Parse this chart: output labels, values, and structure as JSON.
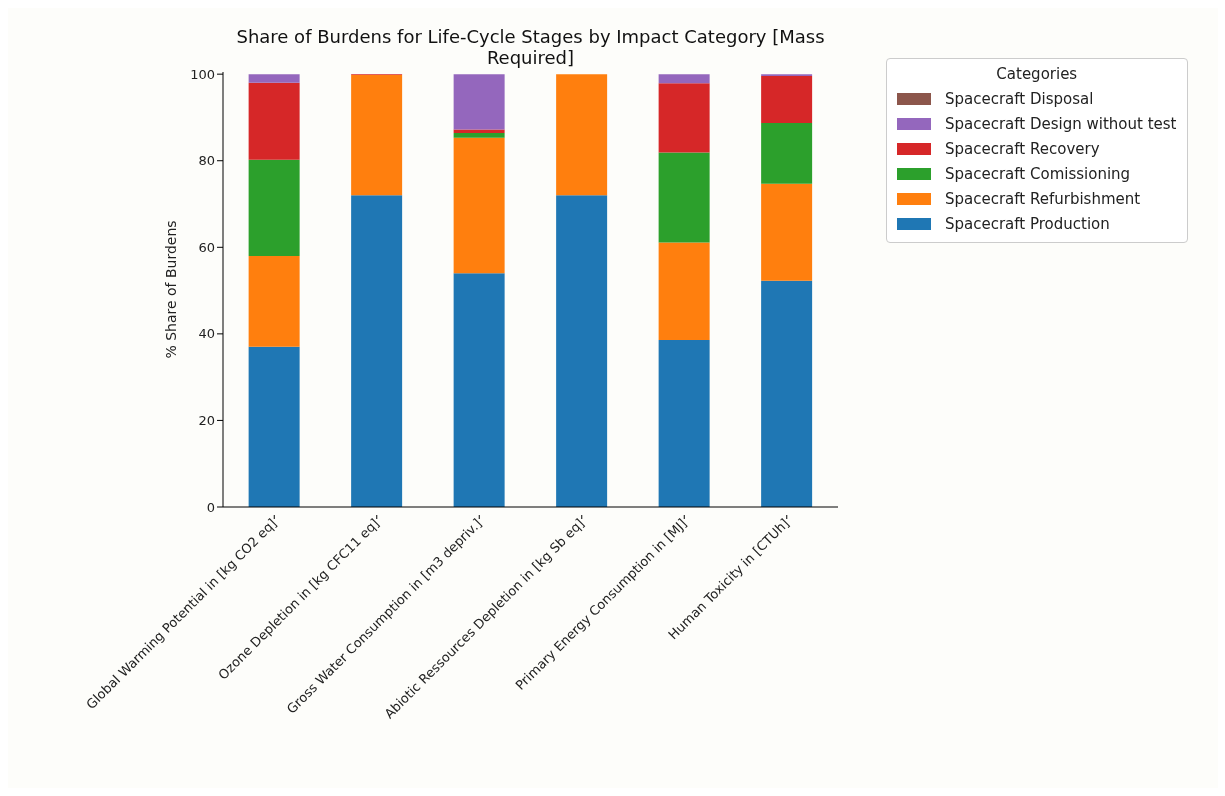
{
  "chart_data": {
    "type": "bar",
    "title": "Share of Burdens for Life-Cycle Stages by Impact Category [Mass Required]",
    "ylabel": "% Share of Burdens",
    "legend_title": "Categories",
    "categories": [
      "Global Warming Potential in [kg CO2 eq]",
      "Ozone Depletion in [kg CFC11 eq]",
      "Gross Water Consumption in [m3 depriv.]",
      "Abiotic Ressources Depletion in [kg Sb eq]",
      "Primary Energy Consumption in [MJ]",
      "Human Toxicity in [CTUh]"
    ],
    "stacked": true,
    "series": [
      {
        "name": "Spacecraft Production",
        "color": "#1f77b4",
        "values": [
          37,
          72,
          54,
          72,
          38.6,
          52.3
        ]
      },
      {
        "name": "Spacecraft Refurbishment",
        "color": "#ff7f0e",
        "values": [
          21,
          27.8,
          31.3,
          28,
          22.5,
          22.4
        ]
      },
      {
        "name": "Spacecraft Comissioning",
        "color": "#2ca02c",
        "values": [
          22.2,
          0,
          1.1,
          0,
          20.8,
          14
        ]
      },
      {
        "name": "Spacecraft Recovery",
        "color": "#d62728",
        "values": [
          17.8,
          0.2,
          0.8,
          0,
          16,
          10.9
        ]
      },
      {
        "name": "Spacecraft Design without test",
        "color": "#9467bd",
        "values": [
          2,
          0,
          12.8,
          0,
          2.1,
          0.4
        ]
      },
      {
        "name": "Spacecraft Disposal",
        "color": "#8c564b",
        "values": [
          0,
          0,
          0,
          0,
          0,
          0
        ]
      }
    ],
    "ylim": [
      0,
      100.5
    ],
    "yticks": [
      0,
      20,
      40,
      60,
      80,
      100
    ],
    "legend": "top right"
  }
}
